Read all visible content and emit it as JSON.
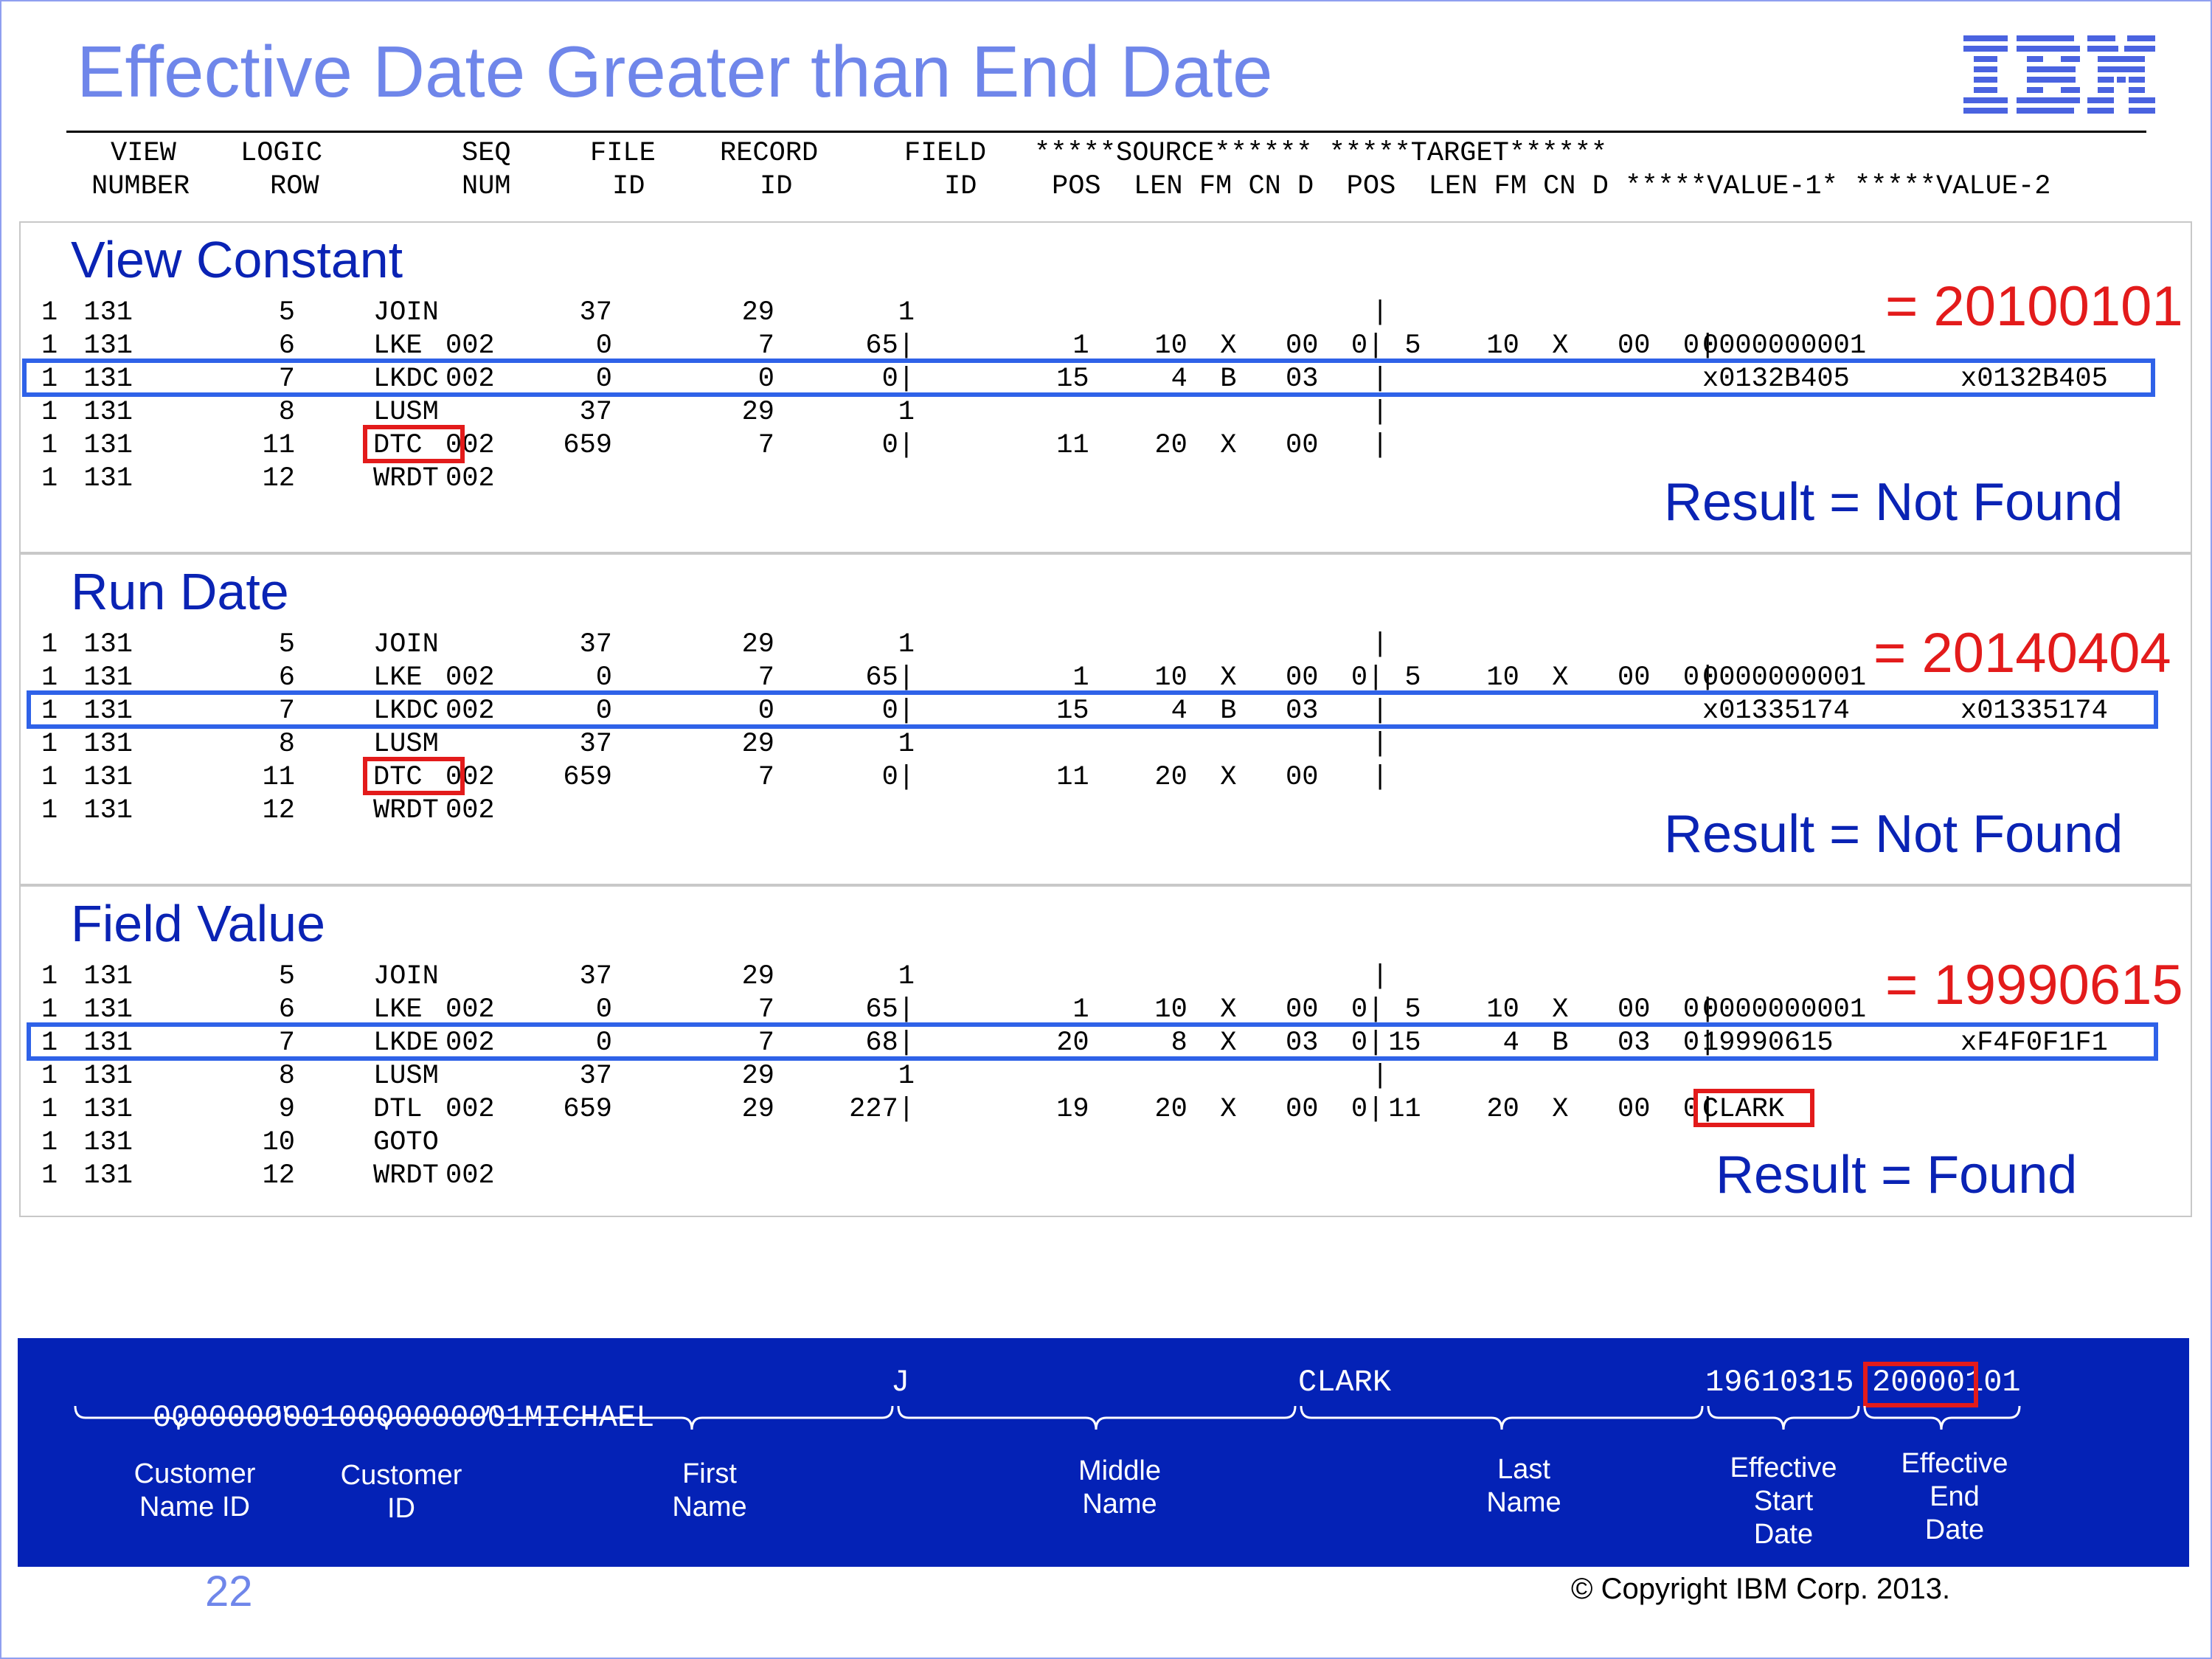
{
  "title": "Effective Date Greater than End Date",
  "logo_text": "IBM",
  "header": {
    "line1": "VIEW    LOGIC          SEQ      FILE     RECORD        FIELD  *****SOURCE****** *****TARGET******",
    "line2": "NUMBER    ROW            NUM       ID        ID           ID    POS   LEN  FM  CN  D    POS   LEN  FM  CN  D  *****VALUE-1*  *****VALUE-2"
  },
  "panels": [
    {
      "title": "View Constant",
      "equals": "= 20100101",
      "result": "Result = Not Found",
      "rows": [
        {
          "view": "1",
          "row": "131",
          "seq": "5",
          "func": "JOIN",
          "lr": "",
          "file": "37",
          "record": "29",
          "field": "1",
          "src": "",
          "tgt": "|",
          "v1": "",
          "v2": ""
        },
        {
          "view": "1",
          "row": "131",
          "seq": "6",
          "func": "LKE",
          "lr": "002",
          "file": "0",
          "record": "7",
          "field": "65|",
          "src": "  1    10  X   00  0|",
          "tgt": "  5    10  X   00  0|",
          "v1": "0000000001",
          "v2": ""
        },
        {
          "view": "1",
          "row": "131",
          "seq": "7",
          "func": "LKDC",
          "lr": "002",
          "file": "0",
          "record": "0",
          "field": "0|",
          "src": " 15     4  B   03",
          "tgt": "|",
          "v1": "x0132B405",
          "v2": "x0132B405"
        },
        {
          "view": "1",
          "row": "131",
          "seq": "8",
          "func": "LUSM",
          "lr": "",
          "file": "37",
          "record": "29",
          "field": "1",
          "src": "",
          "tgt": "|",
          "v1": "",
          "v2": ""
        },
        {
          "view": "1",
          "row": "131",
          "seq": "11",
          "func": "DTC",
          "lr": "002",
          "file": "659",
          "record": "7",
          "field": "0|",
          "src": " 11    20  X   00",
          "tgt": "|",
          "v1": "",
          "v2": ""
        },
        {
          "view": "1",
          "row": "131",
          "seq": "12",
          "func": "WRDT",
          "lr": "002",
          "file": "",
          "record": "",
          "field": "",
          "src": "",
          "tgt": "",
          "v1": "",
          "v2": ""
        }
      ]
    },
    {
      "title": "Run Date",
      "equals": "= 20140404",
      "result": "Result = Not Found",
      "rows": [
        {
          "view": "1",
          "row": "131",
          "seq": "5",
          "func": "JOIN",
          "lr": "",
          "file": "37",
          "record": "29",
          "field": "1",
          "src": "",
          "tgt": "|",
          "v1": "",
          "v2": ""
        },
        {
          "view": "1",
          "row": "131",
          "seq": "6",
          "func": "LKE",
          "lr": "002",
          "file": "0",
          "record": "7",
          "field": "65|",
          "src": "  1    10  X   00  0|",
          "tgt": "  5    10  X   00  0|",
          "v1": "0000000001",
          "v2": ""
        },
        {
          "view": "1",
          "row": "131",
          "seq": "7",
          "func": "LKDC",
          "lr": "002",
          "file": "0",
          "record": "0",
          "field": "0|",
          "src": " 15     4  B   03",
          "tgt": "|",
          "v1": "x01335174",
          "v2": "x01335174"
        },
        {
          "view": "1",
          "row": "131",
          "seq": "8",
          "func": "LUSM",
          "lr": "",
          "file": "37",
          "record": "29",
          "field": "1",
          "src": "",
          "tgt": "|",
          "v1": "",
          "v2": ""
        },
        {
          "view": "1",
          "row": "131",
          "seq": "11",
          "func": "DTC",
          "lr": "002",
          "file": "659",
          "record": "7",
          "field": "0|",
          "src": " 11    20  X   00",
          "tgt": "|",
          "v1": "",
          "v2": ""
        },
        {
          "view": "1",
          "row": "131",
          "seq": "12",
          "func": "WRDT",
          "lr": "002",
          "file": "",
          "record": "",
          "field": "",
          "src": "",
          "tgt": "",
          "v1": "",
          "v2": ""
        }
      ]
    },
    {
      "title": "Field  Value",
      "equals": "= 19990615",
      "result": "Result = Found",
      "rows": [
        {
          "view": "1",
          "row": "131",
          "seq": "5",
          "func": "JOIN",
          "lr": "",
          "file": "37",
          "record": "29",
          "field": "1",
          "src": "",
          "tgt": "|",
          "v1": "",
          "v2": ""
        },
        {
          "view": "1",
          "row": "131",
          "seq": "6",
          "func": "LKE",
          "lr": "002",
          "file": "0",
          "record": "7",
          "field": "65|",
          "src": "  1    10  X   00  0|",
          "tgt": "  5    10  X   00  0|",
          "v1": "0000000001",
          "v2": ""
        },
        {
          "view": "1",
          "row": "131",
          "seq": "7",
          "func": "LKDE",
          "lr": "002",
          "file": "0",
          "record": "7",
          "field": "68|",
          "src": " 20     8  X   03  0|",
          "tgt": " 15     4  B   03  0|",
          "v1": "19990615",
          "v2": "xF4F0F1F1"
        },
        {
          "view": "1",
          "row": "131",
          "seq": "8",
          "func": "LUSM",
          "lr": "",
          "file": "37",
          "record": "29",
          "field": "1",
          "src": "",
          "tgt": "|",
          "v1": "",
          "v2": ""
        },
        {
          "view": "1",
          "row": "131",
          "seq": "9",
          "func": "DTL",
          "lr": "002",
          "file": "659",
          "record": "29",
          "field": "227|",
          "src": " 19    20  X   00  0|",
          "tgt": " 11    20  X   00  0|",
          "v1": "CLARK",
          "v2": ""
        },
        {
          "view": "1",
          "row": "131",
          "seq": "10",
          "func": "GOTO",
          "lr": "",
          "file": "",
          "record": "",
          "field": "",
          "src": "",
          "tgt": "",
          "v1": "",
          "v2": ""
        },
        {
          "view": "1",
          "row": "131",
          "seq": "12",
          "func": "WRDT",
          "lr": "002",
          "file": "",
          "record": "",
          "field": "",
          "src": "",
          "tgt": "",
          "v1": "",
          "v2": ""
        }
      ]
    }
  ],
  "record": {
    "segments": [
      "0000000001",
      "0000000001",
      "MICHAEL",
      "J",
      "CLARK",
      "19610315",
      "20000101"
    ],
    "labels": [
      "Customer\nName ID",
      "Customer\nID",
      "First\nName",
      "Middle\nName",
      "Last\nName",
      "Effective\nStart\nDate",
      "Effective\nEnd\nDate"
    ]
  },
  "page_number": "22",
  "copyright": "© Copyright IBM Corp. 2013.",
  "colors": {
    "title": "#6f86ea",
    "panel_title": "#0a23b4",
    "highlight_box": "#2f62e8",
    "red_box": "#e31b1b",
    "record_bg": "#0422b6"
  }
}
